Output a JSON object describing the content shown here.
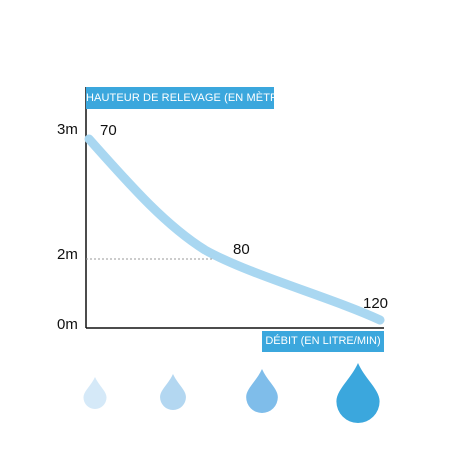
{
  "chart_data": {
    "type": "line",
    "xlabel": "DÉBIT (EN LITRE/MIN)",
    "ylabel": "HAUTEUR DE RELEVAGE (EN MÈTRE)",
    "y_ticks": [
      "3m",
      "2m",
      "0m"
    ],
    "series": [
      {
        "points": [
          {
            "y": 3,
            "label": "70"
          },
          {
            "y": 2,
            "label": "80"
          },
          {
            "y": 0,
            "label": "120"
          }
        ]
      }
    ],
    "reference_line": {
      "y": 2,
      "style": "dotted"
    },
    "colors": {
      "curve": "#a9d7f1",
      "label_box": "#3ba7dd",
      "axis": "#111111",
      "drops": [
        "#d5e9f8",
        "#b3d7f1",
        "#7fbdea",
        "#3ba7dd"
      ]
    },
    "legend_icons": [
      "drop-icon",
      "drop-icon",
      "drop-icon",
      "drop-icon"
    ]
  }
}
